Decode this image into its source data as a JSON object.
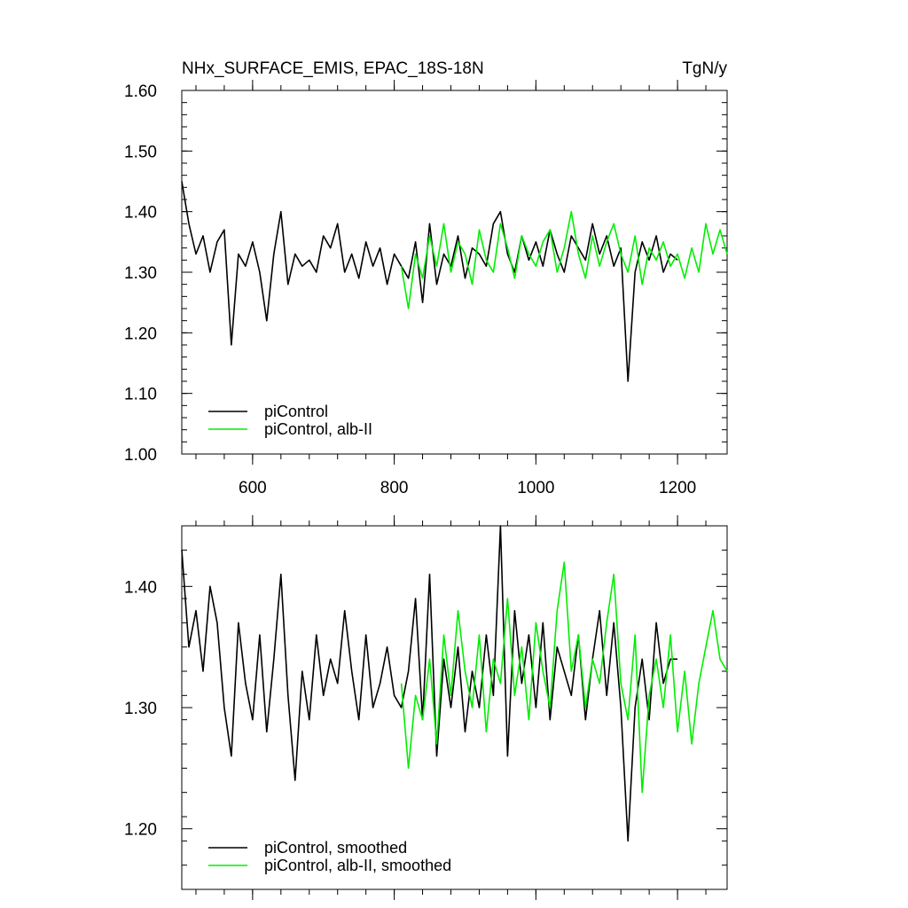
{
  "chart_data": [
    {
      "type": "line",
      "title": "NHx_SURFACE_EMIS, EPAC_18S-18N",
      "units": "TgN/y",
      "xlim": [
        500,
        1270
      ],
      "ylim": [
        1.0,
        1.6
      ],
      "xticks": [
        600,
        800,
        1000,
        1200
      ],
      "xtick_labels": [
        "600",
        "800",
        "1000",
        "1200"
      ],
      "yticks": [
        1.0,
        1.1,
        1.2,
        1.3,
        1.4,
        1.5,
        1.6
      ],
      "ytick_labels": [
        "1.00",
        "1.10",
        "1.20",
        "1.30",
        "1.40",
        "1.50",
        "1.60"
      ],
      "legend_position": "bottom-left",
      "series": [
        {
          "name": "piControl",
          "color": "#000000",
          "x": [
            500,
            510,
            520,
            530,
            540,
            550,
            560,
            570,
            580,
            590,
            600,
            610,
            620,
            630,
            640,
            650,
            660,
            670,
            680,
            690,
            700,
            710,
            720,
            730,
            740,
            750,
            760,
            770,
            780,
            790,
            800,
            810,
            820,
            830,
            840,
            850,
            860,
            870,
            880,
            890,
            900,
            910,
            920,
            930,
            940,
            950,
            960,
            970,
            980,
            990,
            1000,
            1010,
            1020,
            1030,
            1040,
            1050,
            1060,
            1070,
            1080,
            1090,
            1100,
            1110,
            1120,
            1130,
            1140,
            1150,
            1160,
            1170,
            1180,
            1190,
            1200
          ],
          "values": [
            1.45,
            1.38,
            1.33,
            1.36,
            1.3,
            1.35,
            1.37,
            1.18,
            1.33,
            1.31,
            1.35,
            1.3,
            1.22,
            1.33,
            1.4,
            1.28,
            1.33,
            1.31,
            1.32,
            1.3,
            1.36,
            1.34,
            1.38,
            1.3,
            1.33,
            1.29,
            1.35,
            1.31,
            1.34,
            1.28,
            1.33,
            1.31,
            1.29,
            1.35,
            1.25,
            1.38,
            1.28,
            1.33,
            1.31,
            1.36,
            1.29,
            1.34,
            1.33,
            1.31,
            1.38,
            1.4,
            1.33,
            1.3,
            1.36,
            1.32,
            1.35,
            1.31,
            1.37,
            1.33,
            1.3,
            1.36,
            1.34,
            1.32,
            1.38,
            1.33,
            1.36,
            1.31,
            1.34,
            1.12,
            1.3,
            1.35,
            1.32,
            1.36,
            1.3,
            1.33,
            1.32
          ]
        },
        {
          "name": "piControl, alb-II",
          "color": "#00ee00",
          "x": [
            810,
            820,
            830,
            840,
            850,
            860,
            870,
            880,
            890,
            900,
            910,
            920,
            930,
            940,
            950,
            960,
            970,
            980,
            990,
            1000,
            1010,
            1020,
            1030,
            1040,
            1050,
            1060,
            1070,
            1080,
            1090,
            1100,
            1110,
            1120,
            1130,
            1140,
            1150,
            1160,
            1170,
            1180,
            1190,
            1200,
            1210,
            1220,
            1230,
            1240,
            1250,
            1260,
            1270
          ],
          "values": [
            1.31,
            1.24,
            1.33,
            1.29,
            1.36,
            1.31,
            1.38,
            1.3,
            1.35,
            1.33,
            1.28,
            1.37,
            1.32,
            1.3,
            1.38,
            1.34,
            1.29,
            1.36,
            1.33,
            1.31,
            1.35,
            1.37,
            1.3,
            1.34,
            1.4,
            1.33,
            1.29,
            1.36,
            1.31,
            1.35,
            1.38,
            1.33,
            1.3,
            1.36,
            1.28,
            1.34,
            1.32,
            1.35,
            1.31,
            1.33,
            1.29,
            1.34,
            1.3,
            1.38,
            1.33,
            1.37,
            1.33
          ]
        }
      ]
    },
    {
      "type": "line",
      "xlim": [
        500,
        1270
      ],
      "ylim": [
        1.15,
        1.45
      ],
      "xticks": [
        600,
        800,
        1000,
        1200
      ],
      "yticks": [
        1.2,
        1.3,
        1.4
      ],
      "ytick_labels": [
        "1.20",
        "1.30",
        "1.40"
      ],
      "legend_position": "bottom-left",
      "series": [
        {
          "name": "piControl, smoothed",
          "color": "#000000",
          "x": [
            500,
            510,
            520,
            530,
            540,
            550,
            560,
            570,
            580,
            590,
            600,
            610,
            620,
            630,
            640,
            650,
            660,
            670,
            680,
            690,
            700,
            710,
            720,
            730,
            740,
            750,
            760,
            770,
            780,
            790,
            800,
            810,
            820,
            830,
            840,
            850,
            860,
            870,
            880,
            890,
            900,
            910,
            920,
            930,
            940,
            950,
            960,
            970,
            980,
            990,
            1000,
            1010,
            1020,
            1030,
            1040,
            1050,
            1060,
            1070,
            1080,
            1090,
            1100,
            1110,
            1120,
            1130,
            1140,
            1150,
            1160,
            1170,
            1180,
            1190,
            1200
          ],
          "values": [
            1.43,
            1.35,
            1.38,
            1.33,
            1.4,
            1.37,
            1.3,
            1.26,
            1.37,
            1.32,
            1.29,
            1.36,
            1.28,
            1.34,
            1.41,
            1.31,
            1.24,
            1.33,
            1.29,
            1.36,
            1.31,
            1.34,
            1.32,
            1.38,
            1.33,
            1.29,
            1.36,
            1.3,
            1.32,
            1.35,
            1.31,
            1.3,
            1.33,
            1.39,
            1.29,
            1.41,
            1.26,
            1.34,
            1.3,
            1.35,
            1.28,
            1.33,
            1.3,
            1.36,
            1.31,
            1.45,
            1.26,
            1.38,
            1.32,
            1.36,
            1.3,
            1.37,
            1.29,
            1.35,
            1.33,
            1.31,
            1.36,
            1.29,
            1.34,
            1.38,
            1.31,
            1.37,
            1.3,
            1.19,
            1.3,
            1.34,
            1.29,
            1.37,
            1.32,
            1.34,
            1.34
          ]
        },
        {
          "name": "piControl, alb-II, smoothed",
          "color": "#00ee00",
          "x": [
            810,
            820,
            830,
            840,
            850,
            860,
            870,
            880,
            890,
            900,
            910,
            920,
            930,
            940,
            950,
            960,
            970,
            980,
            990,
            1000,
            1010,
            1020,
            1030,
            1040,
            1050,
            1060,
            1070,
            1080,
            1090,
            1100,
            1110,
            1120,
            1130,
            1140,
            1150,
            1160,
            1170,
            1180,
            1190,
            1200,
            1210,
            1220,
            1230,
            1240,
            1250,
            1260,
            1270
          ],
          "values": [
            1.32,
            1.25,
            1.31,
            1.29,
            1.34,
            1.27,
            1.36,
            1.31,
            1.38,
            1.33,
            1.3,
            1.36,
            1.28,
            1.34,
            1.32,
            1.39,
            1.31,
            1.35,
            1.29,
            1.37,
            1.33,
            1.3,
            1.38,
            1.42,
            1.33,
            1.36,
            1.3,
            1.34,
            1.32,
            1.37,
            1.41,
            1.32,
            1.29,
            1.36,
            1.23,
            1.31,
            1.34,
            1.3,
            1.36,
            1.28,
            1.33,
            1.27,
            1.32,
            1.35,
            1.38,
            1.34,
            1.33
          ]
        }
      ]
    }
  ]
}
